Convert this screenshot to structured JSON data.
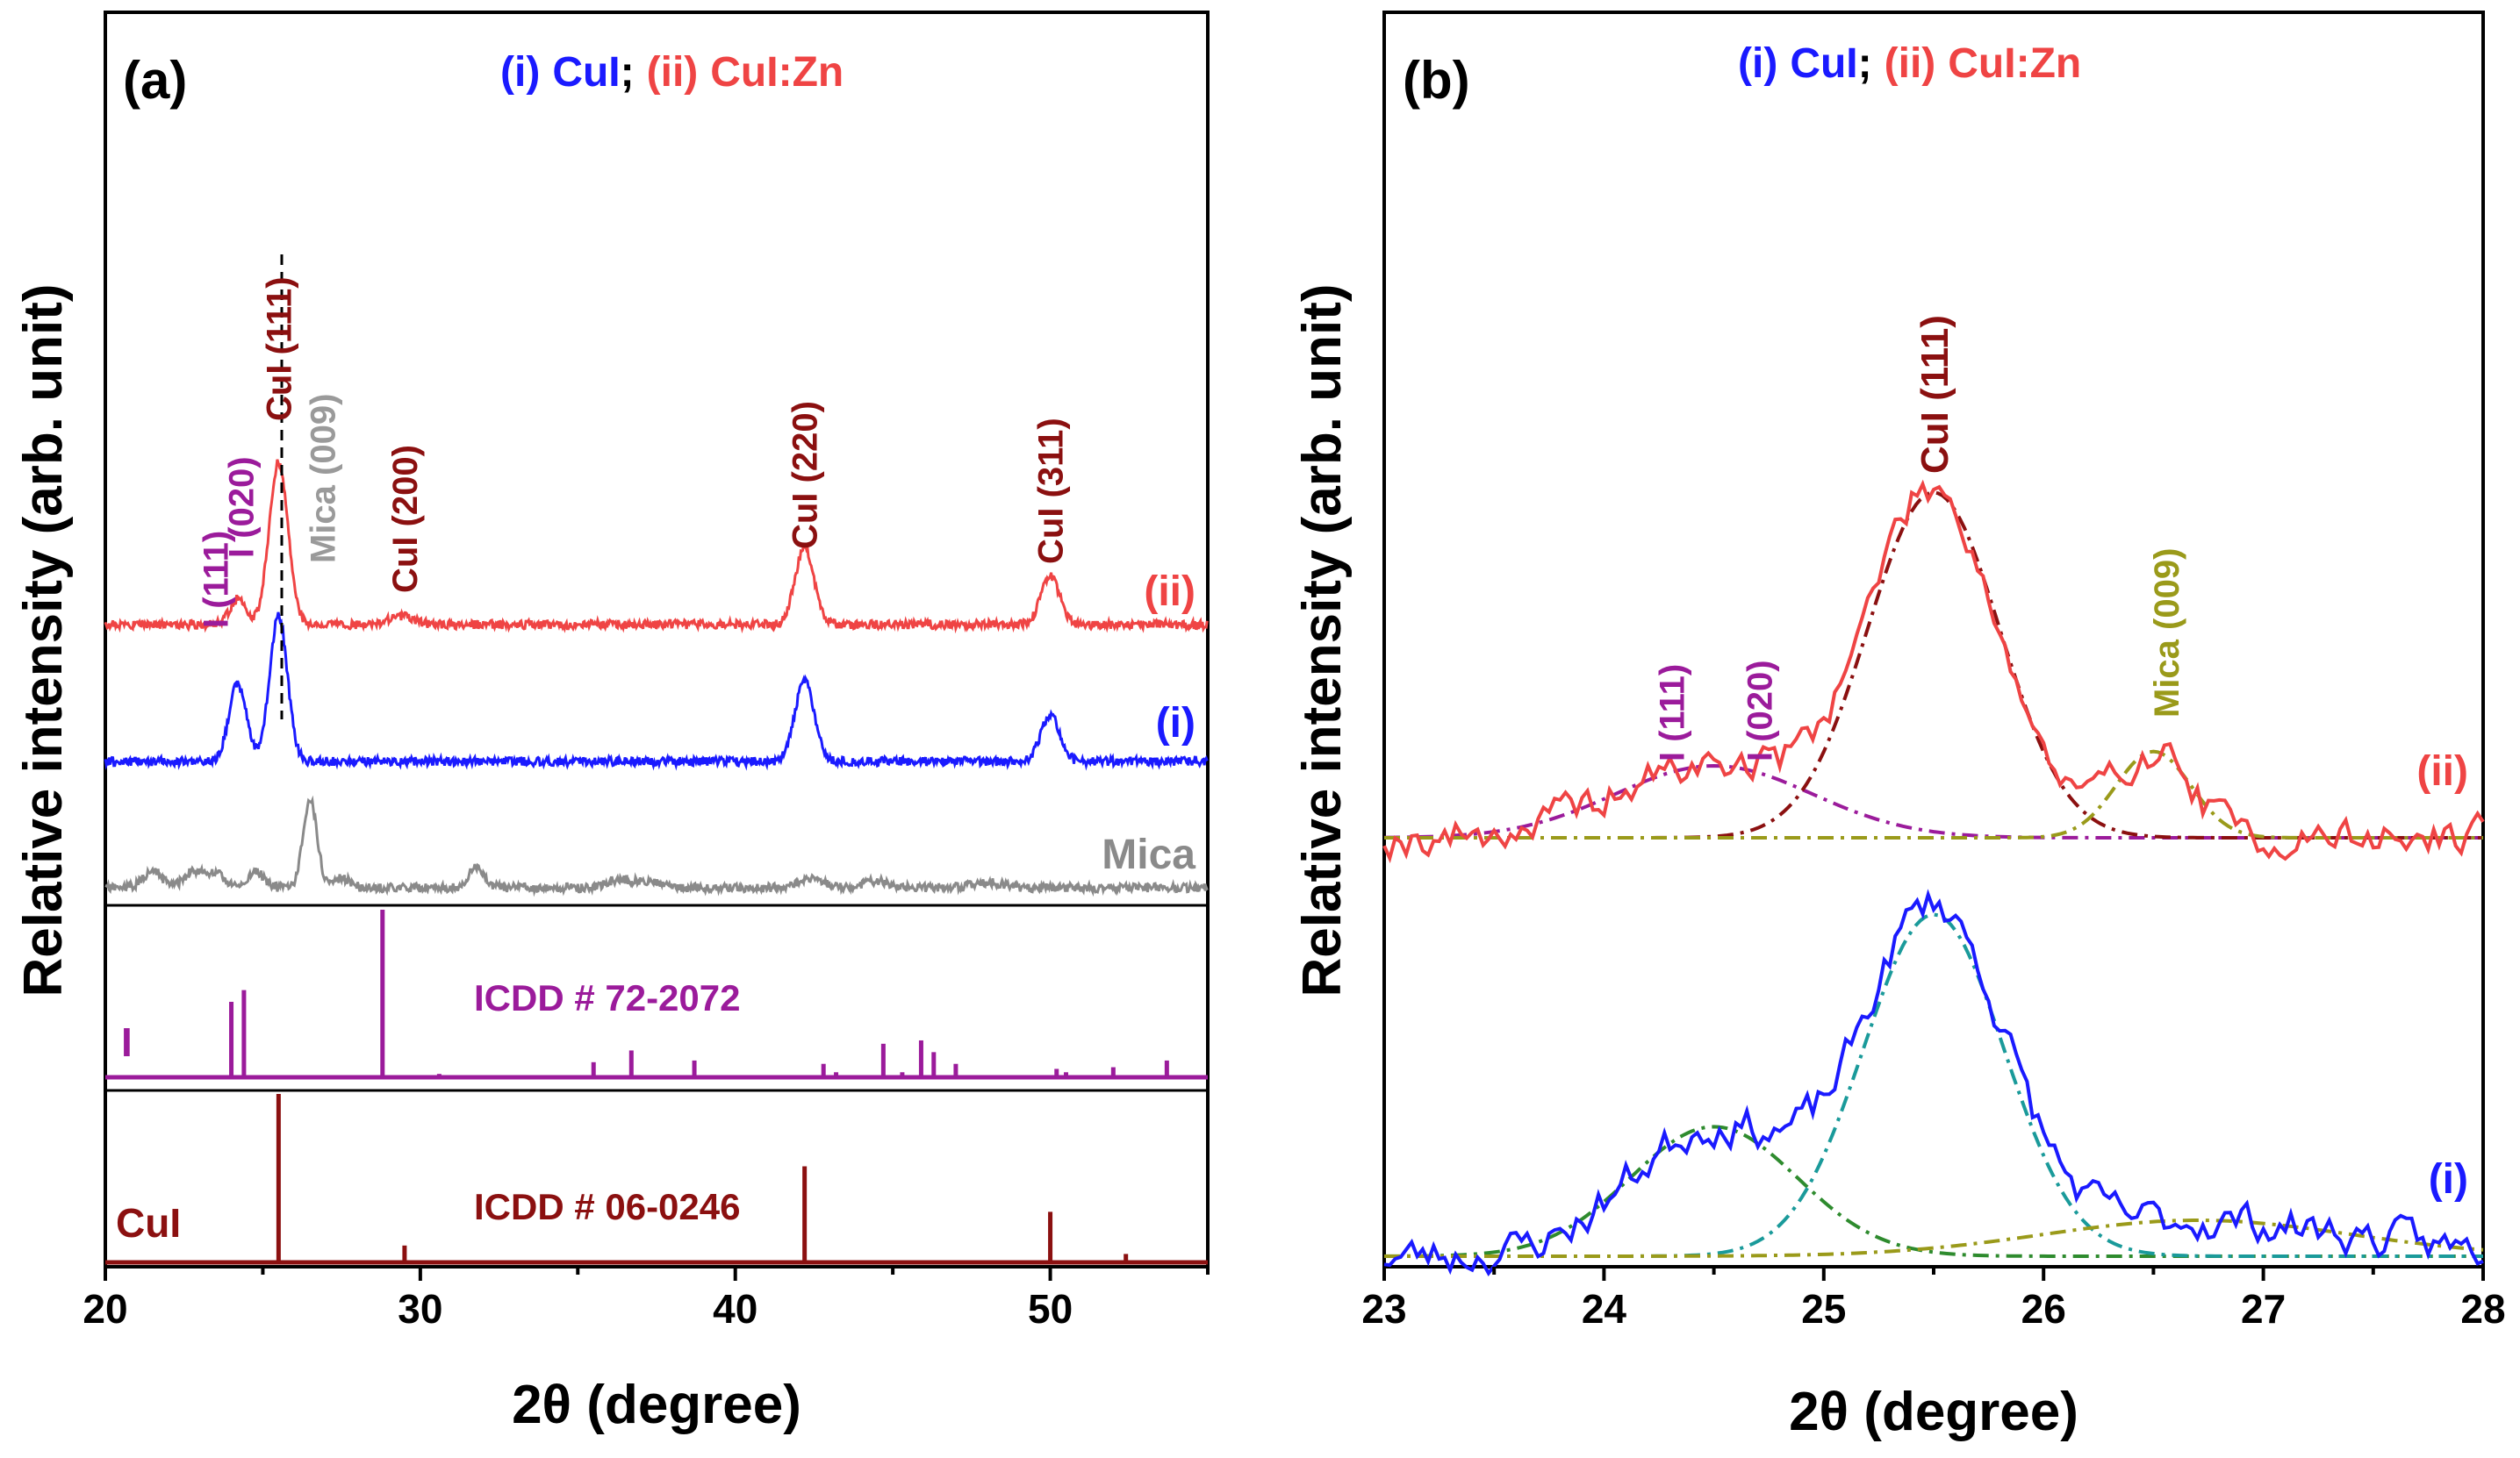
{
  "chart_data": [
    {
      "type": "line",
      "panel": "(a)",
      "legend": {
        "i_marker": "(i)",
        "i_name": "CuI",
        "sep": ";",
        "ii_marker": "(ii)",
        "ii_name": "CuI:Zn"
      },
      "xlabel": "2θ (degree)",
      "ylabel": "Relative intensity (arb. unit)",
      "xlim": [
        20,
        55
      ],
      "xticks": [
        20,
        30,
        40,
        50
      ],
      "series": [
        {
          "name": "(ii)",
          "label": "(ii)",
          "color": "#ef4444",
          "peaks": [
            [
              24.2,
              0.15,
              0.25
            ],
            [
              25.5,
              0.95,
              0.3
            ],
            [
              29.4,
              0.05,
              0.4
            ],
            [
              42.2,
              0.45,
              0.3
            ],
            [
              50.0,
              0.28,
              0.3
            ]
          ]
        },
        {
          "name": "(i)",
          "label": "(i)",
          "color": "#1a1aff",
          "peaks": [
            [
              24.2,
              0.45,
              0.28
            ],
            [
              25.5,
              0.85,
              0.28
            ],
            [
              42.2,
              0.48,
              0.3
            ],
            [
              50.0,
              0.27,
              0.3
            ]
          ]
        },
        {
          "name": "Mica",
          "label": "Mica",
          "color": "#8a8a8a",
          "peaks": [
            [
              21.5,
              0.12,
              0.3
            ],
            [
              22.8,
              0.12,
              0.3
            ],
            [
              23.5,
              0.1,
              0.3
            ],
            [
              24.8,
              0.12,
              0.25
            ],
            [
              26.5,
              0.65,
              0.22
            ],
            [
              27.5,
              0.07,
              0.3
            ],
            [
              31.8,
              0.15,
              0.25
            ],
            [
              36.3,
              0.06,
              0.4
            ],
            [
              37.3,
              0.05,
              0.4
            ],
            [
              42.4,
              0.07,
              0.4
            ],
            [
              44.5,
              0.05,
              0.4
            ],
            [
              48.0,
              0.04,
              0.5
            ]
          ]
        }
      ],
      "peak_labels": [
        {
          "text": "I (111)",
          "x": 23.5,
          "color": "#9b1b9b"
        },
        {
          "text": "I (020)",
          "x": 24.3,
          "color": "#9b1b9b"
        },
        {
          "text": "CuI (111)",
          "x": 25.5,
          "color": "#8b1010"
        },
        {
          "text": "Mica (009)",
          "x": 26.9,
          "color": "#9a9a9a"
        },
        {
          "text": "CuI (200)",
          "x": 29.5,
          "color": "#8b1010"
        },
        {
          "text": "CuI (220)",
          "x": 42.2,
          "color": "#8b1010"
        },
        {
          "text": "CuI (311)",
          "x": 50.0,
          "color": "#8b1010"
        }
      ],
      "reference_patterns": [
        {
          "label": "I",
          "icdd": "ICDD # 72-2072",
          "color": "#9b1b9b",
          "lines": [
            [
              24.0,
              0.45
            ],
            [
              24.4,
              0.52
            ],
            [
              28.8,
              1.0
            ],
            [
              30.6,
              0.02
            ],
            [
              35.5,
              0.09
            ],
            [
              36.7,
              0.16
            ],
            [
              38.7,
              0.1
            ],
            [
              42.8,
              0.08
            ],
            [
              43.2,
              0.03
            ],
            [
              44.7,
              0.2
            ],
            [
              45.3,
              0.03
            ],
            [
              45.9,
              0.22
            ],
            [
              46.3,
              0.15
            ],
            [
              47.0,
              0.08
            ],
            [
              50.2,
              0.05
            ],
            [
              50.5,
              0.03
            ],
            [
              52.0,
              0.06
            ],
            [
              53.7,
              0.1
            ]
          ]
        },
        {
          "label": "CuI",
          "icdd": "ICDD # 06-0246",
          "color": "#8b1010",
          "lines": [
            [
              25.5,
              1.0
            ],
            [
              29.5,
              0.1
            ],
            [
              42.2,
              0.57
            ],
            [
              50.0,
              0.3
            ],
            [
              52.4,
              0.05
            ]
          ]
        }
      ]
    },
    {
      "type": "line",
      "panel": "(b)",
      "legend": {
        "i_marker": "(i)",
        "i_name": "CuI",
        "sep": ";",
        "ii_marker": "(ii)",
        "ii_name": "CuI:Zn"
      },
      "xlabel": "2θ (degree)",
      "ylabel": "Relative intensity (arb. unit)",
      "xlim": [
        23,
        28
      ],
      "xticks": [
        23,
        24,
        25,
        26,
        27,
        28
      ],
      "series": [
        {
          "name": "(ii)",
          "label": "(ii)",
          "color": "#ef4444",
          "fits": [
            {
              "name": "I (111)/I (020)",
              "color": "#9b1b9b",
              "center": 24.5,
              "height": 0.2,
              "width": 0.45
            },
            {
              "name": "CuI (111)",
              "color": "#8b1010",
              "center": 25.5,
              "height": 0.96,
              "width": 0.3
            },
            {
              "name": "Mica (009)",
              "color": "#9a9a1a",
              "center": 26.5,
              "height": 0.24,
              "width": 0.17
            }
          ]
        },
        {
          "name": "(i)",
          "label": "(i)",
          "color": "#1a1aff",
          "fits": [
            {
              "name": "I",
              "color": "#2e8b2e",
              "center": 24.5,
              "height": 0.36,
              "width": 0.38
            },
            {
              "name": "CuI (111)",
              "color": "#1a9a9a",
              "center": 25.5,
              "height": 0.95,
              "width": 0.32
            },
            {
              "name": "Mica",
              "color": "#9a9a1a",
              "center": 26.7,
              "height": 0.1,
              "width": 0.7
            }
          ]
        }
      ],
      "peak_labels": [
        {
          "text": "I (111)",
          "x": 24.3,
          "color": "#9b1b9b"
        },
        {
          "text": "I (020)",
          "x": 24.7,
          "color": "#9b1b9b"
        },
        {
          "text": "CuI (111)",
          "x": 25.5,
          "color": "#8b1010"
        },
        {
          "text": "Mica (009)",
          "x": 26.55,
          "color": "#9a9a1a"
        }
      ]
    }
  ]
}
